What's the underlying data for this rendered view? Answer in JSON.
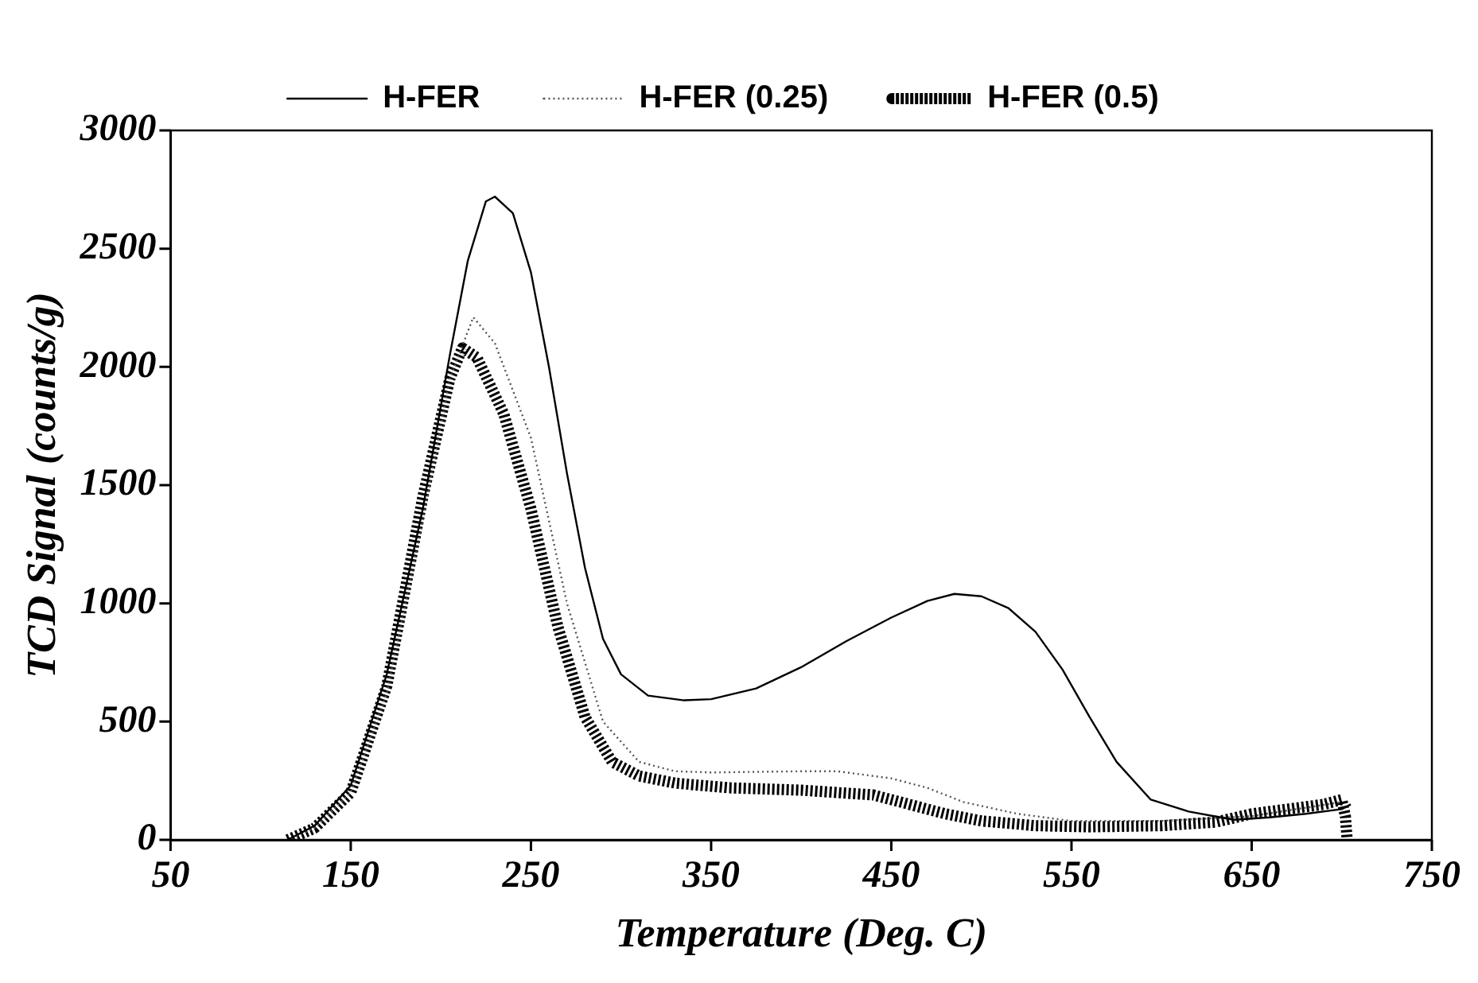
{
  "chart_data": {
    "type": "line",
    "xlabel": "Temperature (Deg. C)",
    "ylabel": "TCD Signal (counts/g)",
    "xlim": [
      50,
      750
    ],
    "xticks": [
      50,
      150,
      250,
      350,
      450,
      550,
      650,
      750
    ],
    "ylim": [
      0,
      3000
    ],
    "yticks": [
      0,
      500,
      1000,
      1500,
      2000,
      2500,
      3000
    ],
    "grid": false,
    "legend": "top",
    "marker": "none",
    "series": [
      {
        "name": "H-FER",
        "color": "#000000",
        "line_style": "solid",
        "x": [
          115,
          130,
          150,
          170,
          190,
          205,
          215,
          225,
          230,
          240,
          250,
          260,
          270,
          280,
          290,
          300,
          315,
          335,
          350,
          375,
          400,
          425,
          450,
          470,
          485,
          500,
          515,
          530,
          545,
          560,
          575,
          594,
          615,
          640,
          660,
          680,
          700,
          705
        ],
        "values": [
          0,
          60,
          230,
          700,
          1400,
          2050,
          2450,
          2700,
          2720,
          2650,
          2400,
          2000,
          1550,
          1150,
          850,
          700,
          610,
          590,
          595,
          640,
          730,
          840,
          940,
          1010,
          1040,
          1030,
          980,
          880,
          720,
          520,
          330,
          170,
          120,
          85,
          95,
          110,
          130,
          150
        ]
      },
      {
        "name": "H-FER (0.25)",
        "color": "#555555",
        "line_style": "dotted",
        "x": [
          115,
          130,
          150,
          170,
          190,
          205,
          218,
          230,
          250,
          270,
          290,
          310,
          330,
          350,
          400,
          420,
          450,
          470,
          490,
          520,
          550,
          600,
          650,
          700
        ],
        "values": [
          0,
          50,
          200,
          620,
          1350,
          1950,
          2210,
          2100,
          1700,
          1000,
          500,
          330,
          290,
          285,
          290,
          290,
          260,
          220,
          160,
          110,
          80,
          80,
          100,
          160
        ]
      },
      {
        "name": "H-FER (0.5)",
        "color": "#000000",
        "line_style": "dashed",
        "x": [
          115,
          130,
          150,
          170,
          190,
          205,
          212,
          220,
          235,
          250,
          265,
          280,
          295,
          310,
          330,
          360,
          400,
          440,
          460,
          480,
          500,
          530,
          560,
          600,
          630,
          650,
          670,
          690,
          700,
          702,
          703
        ],
        "values": [
          0,
          50,
          200,
          650,
          1450,
          1950,
          2080,
          2040,
          1800,
          1400,
          900,
          520,
          330,
          270,
          240,
          220,
          210,
          190,
          150,
          110,
          80,
          60,
          55,
          60,
          75,
          110,
          130,
          150,
          170,
          100,
          0
        ]
      }
    ]
  }
}
